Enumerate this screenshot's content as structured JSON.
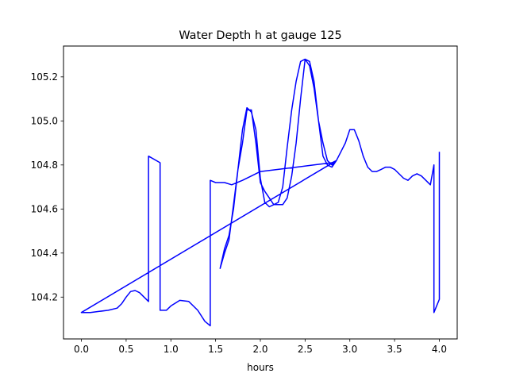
{
  "chart_data": {
    "type": "line",
    "title": "Water Depth h at gauge 125",
    "xlabel": "hours",
    "ylabel": "",
    "xlim": [
      -0.2,
      4.2
    ],
    "ylim": [
      104.01,
      105.34
    ],
    "xticks": [
      0.0,
      0.5,
      1.0,
      1.5,
      2.0,
      2.5,
      3.0,
      3.5,
      4.0
    ],
    "xtick_labels": [
      "0.0",
      "0.5",
      "1.0",
      "1.5",
      "2.0",
      "2.5",
      "3.0",
      "3.5",
      "4.0"
    ],
    "yticks": [
      104.2,
      104.4,
      104.6,
      104.8,
      105.0,
      105.2
    ],
    "ytick_labels": [
      "104.2",
      "104.4",
      "104.6",
      "104.8",
      "105.0",
      "105.2"
    ],
    "grid": false,
    "series": [
      {
        "color": "#0000ff",
        "x": [
          0.0,
          0.1,
          0.2,
          0.3,
          0.4,
          0.45,
          0.5,
          0.55,
          0.6,
          0.65,
          0.7,
          0.75,
          0.75,
          0.88,
          0.88,
          0.95,
          1.0,
          1.1,
          1.2,
          1.3,
          1.38,
          1.44,
          1.44,
          1.5,
          1.6,
          1.68,
          1.8,
          1.9,
          2.0,
          2.2,
          2.4,
          2.6,
          2.8,
          2.85,
          0.0,
          2.85,
          2.8,
          2.75,
          2.7,
          2.65,
          2.6,
          2.55,
          2.5,
          2.45,
          2.4,
          2.35,
          2.3,
          2.25,
          2.2,
          2.15,
          2.1,
          2.05,
          2.0,
          1.95,
          1.9,
          1.85,
          1.8,
          1.75,
          1.7,
          1.65,
          1.6,
          1.55,
          1.55,
          1.6,
          1.65,
          1.7,
          1.75,
          1.8,
          1.85,
          1.9,
          1.95,
          2.0,
          2.05,
          2.1,
          2.15,
          2.2,
          2.25,
          2.3,
          2.35,
          2.4,
          2.45,
          2.5,
          2.55,
          2.6,
          2.65,
          2.7,
          2.75,
          2.8,
          2.85,
          2.9,
          2.95,
          3.0,
          3.05,
          3.1,
          3.15,
          3.2,
          3.25,
          3.3,
          3.35,
          3.4,
          3.45,
          3.5,
          3.55,
          3.6,
          3.65,
          3.7,
          3.75,
          3.8,
          3.85,
          3.9,
          3.94,
          3.94,
          4.0,
          4.0
        ],
        "y": [
          104.13,
          104.13,
          104.135,
          104.14,
          104.15,
          104.17,
          104.2,
          104.225,
          104.23,
          104.22,
          104.2,
          104.18,
          104.84,
          104.81,
          104.14,
          104.14,
          104.16,
          104.185,
          104.18,
          104.14,
          104.09,
          104.07,
          104.73,
          104.72,
          104.72,
          104.71,
          104.73,
          104.75,
          104.77,
          104.78,
          104.79,
          104.8,
          104.81,
          104.82,
          104.13,
          104.82,
          104.79,
          104.8,
          104.84,
          105.0,
          105.18,
          105.27,
          105.28,
          105.1,
          104.9,
          104.75,
          104.65,
          104.62,
          104.62,
          104.62,
          104.65,
          104.68,
          104.72,
          104.9,
          105.05,
          105.05,
          104.9,
          104.78,
          104.6,
          104.48,
          104.42,
          104.33,
          104.33,
          104.4,
          104.46,
          104.62,
          104.78,
          104.96,
          105.06,
          105.04,
          104.96,
          104.74,
          104.63,
          104.61,
          104.62,
          104.63,
          104.7,
          104.88,
          105.05,
          105.18,
          105.27,
          105.28,
          105.25,
          105.15,
          105.0,
          104.9,
          104.82,
          104.8,
          104.82,
          104.86,
          104.9,
          104.96,
          104.96,
          104.91,
          104.84,
          104.79,
          104.77,
          104.77,
          104.78,
          104.79,
          104.79,
          104.78,
          104.76,
          104.74,
          104.73,
          104.75,
          104.76,
          104.75,
          104.73,
          104.71,
          104.8,
          104.13,
          104.19,
          104.86
        ]
      }
    ]
  }
}
